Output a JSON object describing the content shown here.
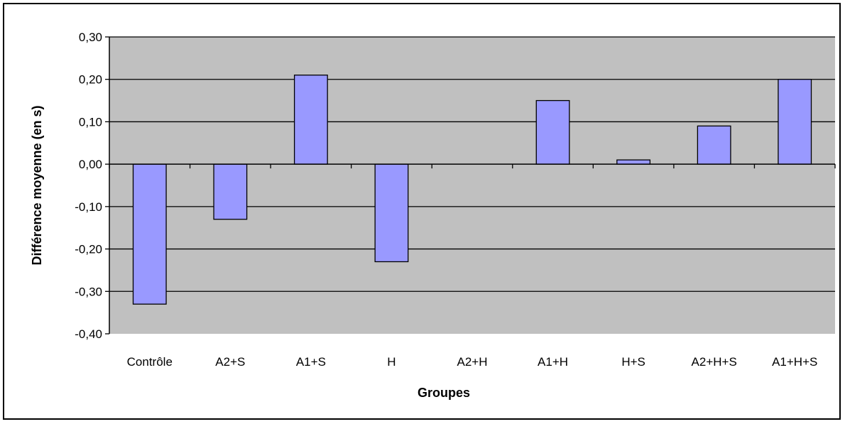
{
  "chart_data": {
    "type": "bar",
    "title": "",
    "xlabel": "Groupes",
    "ylabel": "Différence moyenne (en s)",
    "categories": [
      "Contrôle",
      "A2+S",
      "A1+S",
      "H",
      "A2+H",
      "A1+H",
      "H+S",
      "A2+H+S",
      "A1+H+S"
    ],
    "values": [
      -0.33,
      -0.13,
      0.21,
      -0.23,
      0.0,
      0.15,
      0.01,
      0.09,
      0.2
    ],
    "ylim": [
      -0.4,
      0.3
    ],
    "yticks": [
      0.3,
      0.2,
      0.1,
      0.0,
      -0.1,
      -0.2,
      -0.3,
      -0.4
    ],
    "ytick_labels": [
      "0,30",
      "0,20",
      "0,10",
      "0,00",
      "-0,10",
      "-0,20",
      "-0,30",
      "-0,40"
    ],
    "grid": true,
    "legend": "none",
    "colors": {
      "bar_fill": "#9999ff",
      "bar_stroke": "#000000",
      "plot_background": "#c0c0c0",
      "gridline": "#000000"
    }
  }
}
